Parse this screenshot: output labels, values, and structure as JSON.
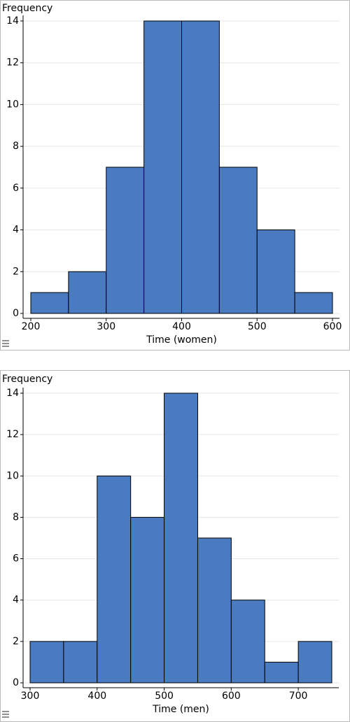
{
  "chart_data": [
    {
      "type": "histogram",
      "ylabel": "Frequency",
      "xlabel": "Time (women)",
      "bins": [
        200,
        250,
        300,
        350,
        400,
        450,
        500,
        550,
        600
      ],
      "values": [
        1,
        2,
        7,
        14,
        14,
        7,
        4,
        1
      ],
      "color": "#4a7bc0",
      "xlim": [
        200,
        600
      ],
      "ylim": [
        0,
        14
      ],
      "xticks": [
        200,
        300,
        400,
        500,
        600
      ],
      "yticks": [
        0,
        2,
        4,
        6,
        8,
        10,
        12,
        14
      ],
      "grid": true
    },
    {
      "type": "histogram",
      "ylabel": "Frequency",
      "xlabel": "Time (men)",
      "bins": [
        300,
        350,
        400,
        450,
        500,
        550,
        600,
        650,
        700,
        750
      ],
      "values": [
        2,
        2,
        10,
        8,
        14,
        7,
        4,
        1,
        2
      ],
      "color": "#4a7bc0",
      "xlim": [
        300,
        750
      ],
      "ylim": [
        0,
        14
      ],
      "xticks": [
        300,
        400,
        500,
        600,
        700
      ],
      "yticks": [
        0,
        2,
        4,
        6,
        8,
        10,
        12,
        14
      ],
      "grid": true
    }
  ]
}
